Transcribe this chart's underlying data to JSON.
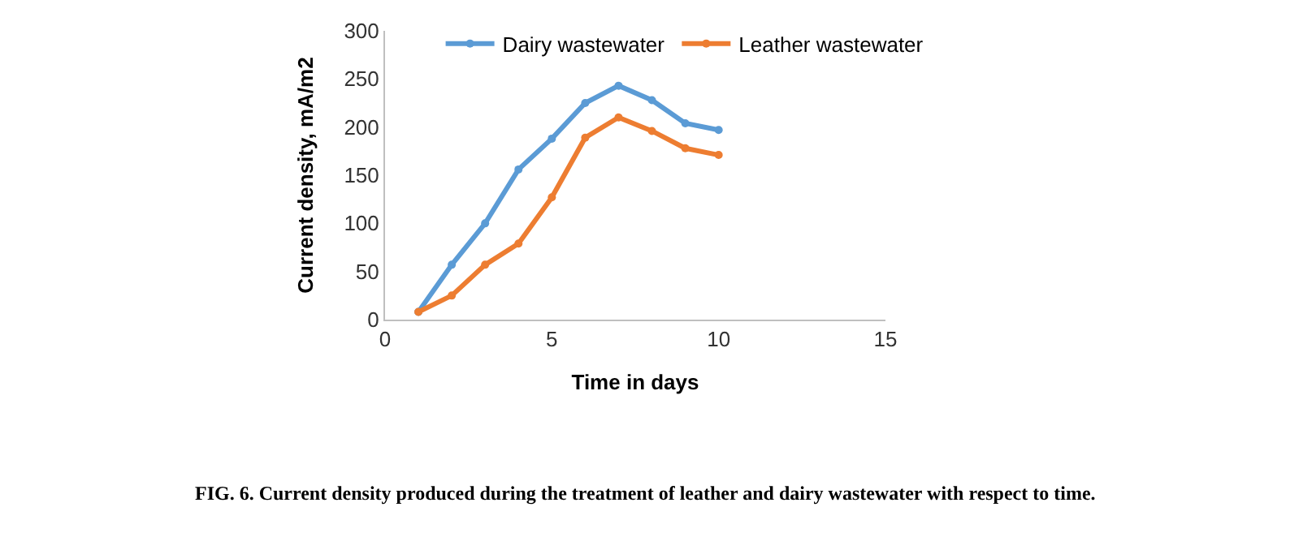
{
  "chart_data": {
    "type": "line",
    "xlabel": "Time in days",
    "ylabel": "Current density, mA/m2",
    "x": [
      1,
      2,
      3,
      4,
      5,
      6,
      7,
      8,
      9,
      10
    ],
    "series": [
      {
        "name": "Dairy wastewater",
        "color": "#5b9bd5",
        "values": [
          8,
          57,
          100,
          156,
          188,
          225,
          243,
          228,
          204,
          197
        ]
      },
      {
        "name": "Leather wastewater",
        "color": "#ed7d31",
        "values": [
          8,
          25,
          57,
          79,
          127,
          189,
          210,
          196,
          178,
          171
        ]
      }
    ],
    "xlim": [
      0,
      15
    ],
    "xticks": [
      0,
      5,
      10,
      15
    ],
    "ylim": [
      0,
      300
    ],
    "yticks": [
      0,
      50,
      100,
      150,
      200,
      250,
      300
    ],
    "legend": "top",
    "marker": "circle",
    "line_style": "solid",
    "annotations": [
      "FIG. 6. Current density produced during the treatment of leather and dairy wastewater with respect to time."
    ]
  }
}
